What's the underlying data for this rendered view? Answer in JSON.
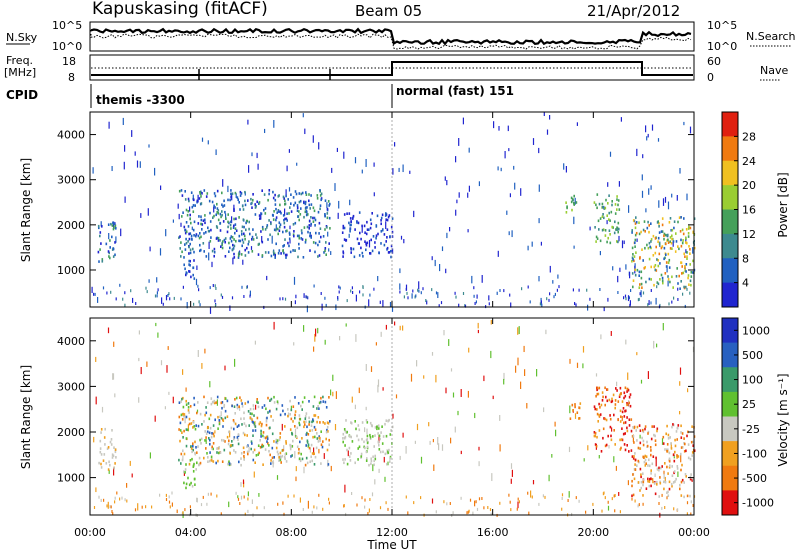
{
  "header": {
    "station": "Kapuskasing (fitACF)",
    "beam": "Beam 05",
    "date": "21/Apr/2012"
  },
  "summary": {
    "nsky_label": "N.Sky",
    "nsky_ticks": [
      "10^5",
      "10^0"
    ],
    "nsearch_label": "N.Search",
    "nsearch_ticks": [
      "10^5",
      "10^0"
    ],
    "freq_label": "Freq.",
    "freq_unit": "[MHz]",
    "freq_ticks": [
      "18",
      "8"
    ],
    "nave_label": "Nave",
    "nave_ticks": [
      "60",
      "0"
    ],
    "cpid_label": "CPID",
    "cpid_segments": [
      {
        "start": "00:00",
        "end": "12:00",
        "label": "themis -3300"
      },
      {
        "start": "12:00",
        "end": "24:00",
        "label": "normal (fast) 151"
      }
    ]
  },
  "chart_data": [
    {
      "type": "heatmap",
      "name": "power",
      "xlabel": "",
      "ylabel": "Slant Range [km]",
      "xlim": [
        0,
        24
      ],
      "ylim": [
        180,
        4500
      ],
      "yticks": [
        "1000",
        "2000",
        "3000",
        "4000"
      ],
      "colorbar": {
        "label": "Power [dB]",
        "ticks": [
          "4",
          "8",
          "12",
          "16",
          "20",
          "24",
          "28"
        ],
        "range": [
          0,
          30
        ]
      },
      "echo_regions": [
        {
          "t": [
            0.3,
            1.0
          ],
          "r": [
            1200,
            2100
          ],
          "level": "blue-green"
        },
        {
          "t": [
            3.6,
            4.2
          ],
          "r": [
            800,
            1300
          ],
          "level": "blue"
        },
        {
          "t": [
            3.5,
            9.5
          ],
          "r": [
            1300,
            2800
          ],
          "level": "blue-green"
        },
        {
          "t": [
            10.0,
            12.0
          ],
          "r": [
            1300,
            2300
          ],
          "level": "blue"
        },
        {
          "t": [
            18.8,
            19.4
          ],
          "r": [
            2300,
            2700
          ],
          "level": "green"
        },
        {
          "t": [
            20.0,
            21.0
          ],
          "r": [
            1600,
            2700
          ],
          "level": "green"
        },
        {
          "t": [
            21.5,
            24.0
          ],
          "r": [
            600,
            2200
          ],
          "level": "green-orange"
        }
      ]
    },
    {
      "type": "heatmap",
      "name": "velocity",
      "xlabel": "Time UT",
      "ylabel": "Slant Range [km]",
      "xlim": [
        0,
        24
      ],
      "ylim": [
        180,
        4500
      ],
      "xticks": [
        "00:00",
        "04:00",
        "08:00",
        "12:00",
        "16:00",
        "20:00",
        "00:00"
      ],
      "yticks": [
        "1000",
        "2000",
        "3000",
        "4000"
      ],
      "colorbar": {
        "label": "Velocity [m s⁻¹]",
        "ticks": [
          "1000",
          "500",
          "100",
          "25",
          "-25",
          "-100",
          "-500",
          "-1000"
        ],
        "range": [
          -1000,
          1000
        ]
      },
      "echo_regions": [
        {
          "t": [
            0.3,
            1.0
          ],
          "r": [
            1200,
            2100
          ],
          "level": "grey"
        },
        {
          "t": [
            3.6,
            4.2
          ],
          "r": [
            800,
            1300
          ],
          "level": "light-green"
        },
        {
          "t": [
            3.5,
            9.5
          ],
          "r": [
            1300,
            2800
          ],
          "level": "grey-orange-green"
        },
        {
          "t": [
            10.0,
            12.0
          ],
          "r": [
            1300,
            2300
          ],
          "level": "grey-green"
        },
        {
          "t": [
            19.0,
            19.5
          ],
          "r": [
            2300,
            2700
          ],
          "level": "orange"
        },
        {
          "t": [
            20.0,
            21.5
          ],
          "r": [
            1600,
            3000
          ],
          "level": "red"
        },
        {
          "t": [
            21.5,
            24.0
          ],
          "r": [
            600,
            2200
          ],
          "level": "orange-grey"
        }
      ]
    }
  ],
  "colors": {
    "power": [
      "#2025d0",
      "#2060c0",
      "#3d8a8f",
      "#45a05a",
      "#9acd32",
      "#f0c020",
      "#f07a10",
      "#e02010"
    ],
    "velocity": [
      "#2030c0",
      "#2860c0",
      "#3a9a6a",
      "#60c030",
      "#c8c8c0",
      "#f0a020",
      "#f07a10",
      "#e01010"
    ]
  }
}
